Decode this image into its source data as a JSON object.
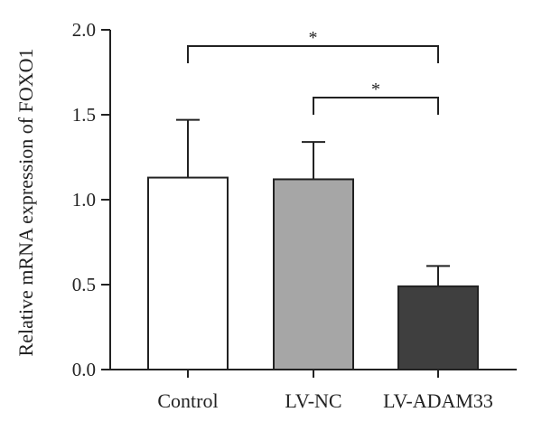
{
  "chart_data": {
    "type": "bar",
    "categories": [
      "Control",
      "LV-NC",
      "LV-ADAM33"
    ],
    "values": [
      1.13,
      1.12,
      0.49
    ],
    "errors": [
      0.34,
      0.22,
      0.12
    ],
    "ylabel": "Relative mRNA expression of FOXO1",
    "ylim": [
      0,
      2.0
    ],
    "yticks": [
      "0.0",
      "0.5",
      "1.0",
      "1.5",
      "2.0"
    ],
    "bar_colors": [
      "#ffffff",
      "#a6a6a6",
      "#3f3f3f"
    ],
    "significance": [
      {
        "from": 0,
        "to": 2,
        "label": "*"
      },
      {
        "from": 1,
        "to": 2,
        "label": "*"
      }
    ],
    "grid": false
  }
}
